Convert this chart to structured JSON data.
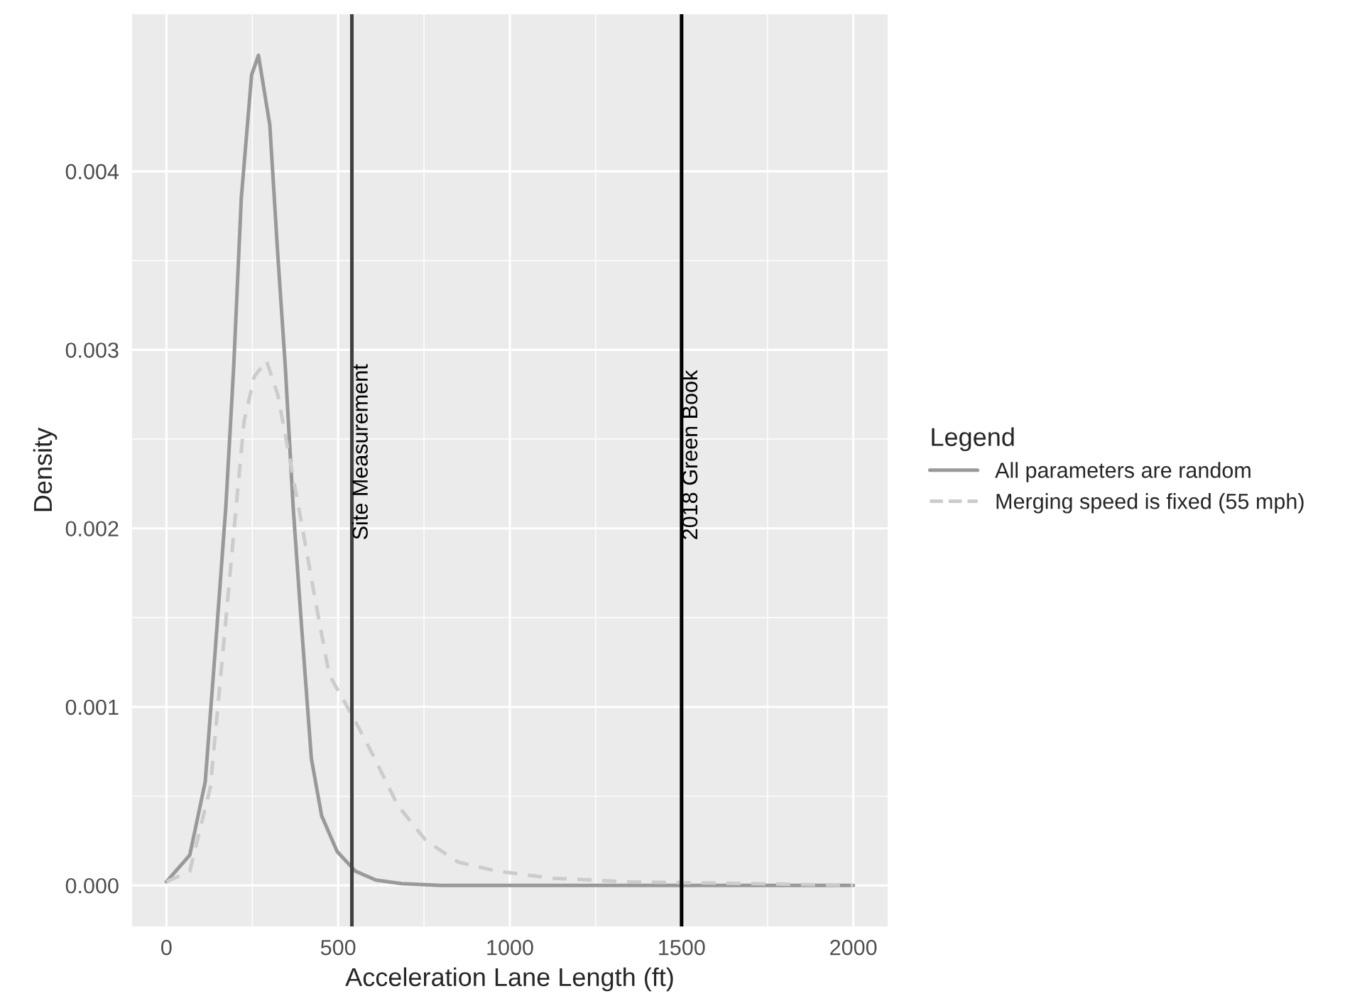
{
  "chart_data": {
    "type": "line",
    "xlabel": "Acceleration Lane Length (ft)",
    "ylabel": "Density",
    "legend_title": "Legend",
    "legend": "right",
    "grid": true,
    "xlim": [
      -100,
      2100
    ],
    "xticks": [
      0,
      500,
      1000,
      1500,
      2000
    ],
    "ylim": [
      -0.00023,
      0.00488
    ],
    "yticks": [
      {
        "value": 0,
        "label": "0.000"
      },
      {
        "value": 0.001,
        "label": "0.001"
      },
      {
        "value": 0.002,
        "label": "0.002"
      },
      {
        "value": 0.003,
        "label": "0.003"
      },
      {
        "value": 0.004,
        "label": "0.004"
      }
    ],
    "series": [
      {
        "name": "All parameters are random",
        "color": "#999999",
        "line_style": "solid",
        "x": [
          0,
          68,
          113,
          143,
          173,
          196,
          218,
          248,
          268,
          301,
          324,
          346,
          369,
          392,
          422,
          452,
          497,
          550,
          610,
          685,
          800,
          1000,
          1500,
          2000
        ],
        "values": [
          2e-05,
          0.00017,
          0.00058,
          0.00134,
          0.00212,
          0.00291,
          0.00385,
          0.00454,
          0.00465,
          0.00426,
          0.00354,
          0.00291,
          0.00212,
          0.00149,
          0.00071,
          0.00039,
          0.00019,
          8e-05,
          3e-05,
          1e-05,
          0,
          0,
          0,
          0
        ]
      },
      {
        "name": "Merging speed is fixed (55 mph)",
        "color": "#cccccc",
        "line_style": "dashed",
        "x": [
          0,
          68,
          128,
          166,
          203,
          226,
          256,
          291,
          324,
          361,
          399,
          437,
          474,
          550,
          604,
          673,
          756,
          850,
          961,
          1125,
          1343,
          1700,
          2000
        ],
        "values": [
          2e-05,
          8e-05,
          0.00055,
          0.00134,
          0.00212,
          0.0026,
          0.00285,
          0.00294,
          0.00275,
          0.00237,
          0.00197,
          0.00156,
          0.00118,
          0.00092,
          0.00072,
          0.00045,
          0.00025,
          0.00013,
          8e-05,
          4e-05,
          2e-05,
          1e-05,
          0
        ]
      }
    ],
    "ref_lines": [
      {
        "axis": "x",
        "value": 540,
        "label": "Site Measurement",
        "color": "#404040"
      },
      {
        "axis": "x",
        "value": 1500,
        "label": "2018 Green Book",
        "color": "#000000"
      }
    ]
  }
}
